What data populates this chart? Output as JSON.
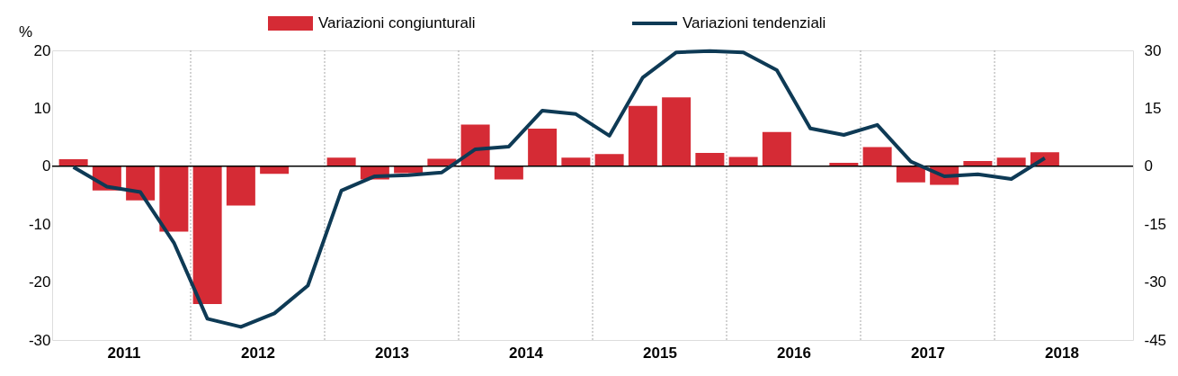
{
  "chart_data": {
    "type": "bar",
    "ylabel": "%",
    "x": [
      2011.125,
      2011.375,
      2011.625,
      2011.875,
      2012.125,
      2012.375,
      2012.625,
      2012.875,
      2013.125,
      2013.375,
      2013.625,
      2013.875,
      2014.125,
      2014.375,
      2014.625,
      2014.875,
      2015.125,
      2015.375,
      2015.625,
      2015.875,
      2016.125,
      2016.375,
      2016.625,
      2016.875,
      2017.125,
      2017.375,
      2017.625,
      2017.875,
      2018.125,
      2018.375
    ],
    "xlim": [
      2011,
      2019
    ],
    "xticks": [
      {
        "value": 2011.5,
        "label": "2011"
      },
      {
        "value": 2012.5,
        "label": "2012"
      },
      {
        "value": 2013.5,
        "label": "2013"
      },
      {
        "value": 2014.5,
        "label": "2014"
      },
      {
        "value": 2015.5,
        "label": "2015"
      },
      {
        "value": 2016.5,
        "label": "2016"
      },
      {
        "value": 2017.5,
        "label": "2017"
      },
      {
        "value": 2018.5,
        "label": "2018"
      }
    ],
    "ylim": [
      -30,
      20
    ],
    "yticks": [
      -30,
      -20,
      -10,
      0,
      10,
      20
    ],
    "y2lim": [
      -45,
      30
    ],
    "y2ticks": [
      -45,
      -30,
      -15,
      0,
      15,
      30
    ],
    "series": [
      {
        "name": "Variazioni congiunturali",
        "color": "#d52b35",
        "values": [
          1.2,
          -4.2,
          -5.9,
          -11.3,
          -23.8,
          -6.8,
          -1.3,
          null,
          1.5,
          -2.3,
          -1.2,
          1.3,
          7.2,
          -2.3,
          6.5,
          1.5,
          2.1,
          10.4,
          11.9,
          2.3,
          1.6,
          5.9,
          null,
          0.6,
          3.3,
          -2.8,
          -3.2,
          0.9,
          1.5,
          2.4
        ]
      },
      {
        "name": "Variazioni tendenziali",
        "type": "line",
        "axis": "y2",
        "color": "#0e3a55",
        "values": [
          -0.2,
          -5.3,
          -6.7,
          -19.8,
          -39.5,
          -41.6,
          -38.1,
          -30.9,
          -6.3,
          -2.6,
          -2.3,
          -1.6,
          4.4,
          5.1,
          14.4,
          13.5,
          7.9,
          23.0,
          29.5,
          29.8,
          29.5,
          24.9,
          9.8,
          8.1,
          10.7,
          1.2,
          -2.6,
          -2.1,
          -3.3,
          2.1
        ]
      }
    ],
    "ref_lines": [
      {
        "axis": "x",
        "value": 2012,
        "color": "#a6a6a6",
        "line_style": "dotted"
      },
      {
        "axis": "x",
        "value": 2013,
        "color": "#a6a6a6",
        "line_style": "dotted"
      },
      {
        "axis": "x",
        "value": 2014,
        "color": "#a6a6a6",
        "line_style": "dotted"
      },
      {
        "axis": "x",
        "value": 2015,
        "color": "#a6a6a6",
        "line_style": "dotted"
      },
      {
        "axis": "x",
        "value": 2016,
        "color": "#a6a6a6",
        "line_style": "dotted"
      },
      {
        "axis": "x",
        "value": 2017,
        "color": "#a6a6a6",
        "line_style": "dotted"
      },
      {
        "axis": "x",
        "value": 2018,
        "color": "#a6a6a6",
        "line_style": "dotted"
      },
      {
        "axis": "y",
        "value": 0,
        "color": "#000000",
        "line_style": "solid"
      }
    ],
    "legend": "top",
    "grid": false
  }
}
